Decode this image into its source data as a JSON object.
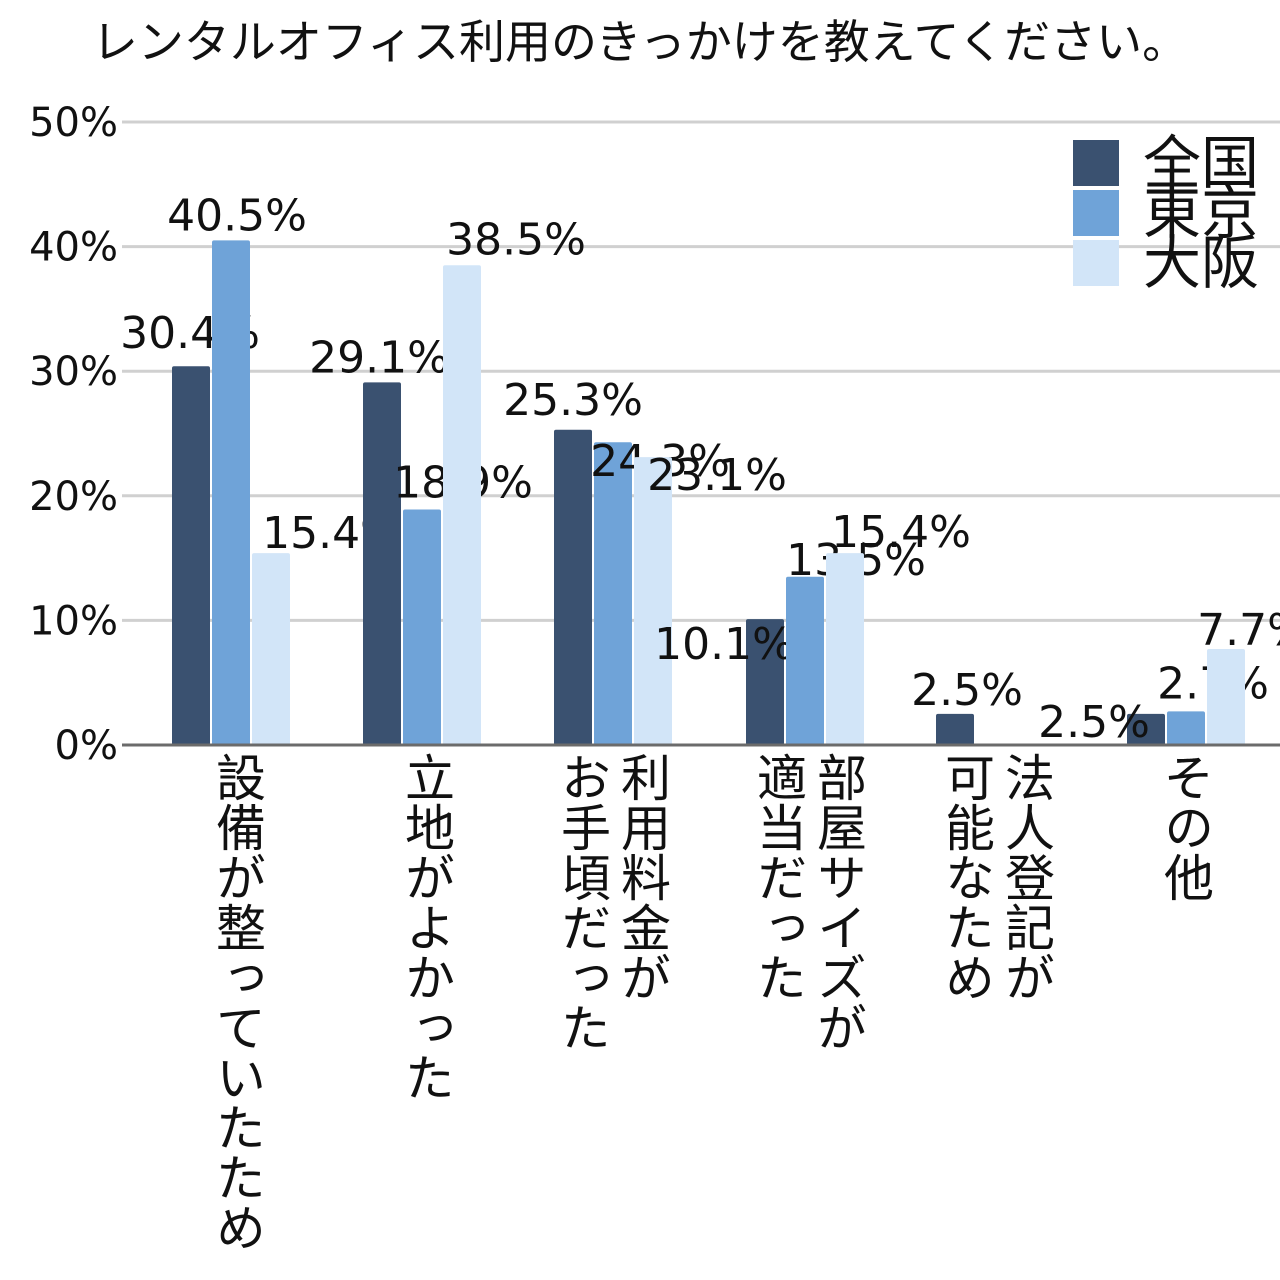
{
  "chart_data": {
    "type": "bar",
    "title": "レンタルオフィス利用のきっかけを教えてください。",
    "xlabel": "",
    "ylabel": "",
    "ylim": [
      0,
      50
    ],
    "yticks": [
      "0%",
      "10%",
      "20%",
      "30%",
      "40%",
      "50%"
    ],
    "grid": true,
    "legend_position": "top-right",
    "categories": [
      "設備が整っていたため",
      "立地がよかった",
      "利用料金が\nお手頃だった",
      "部屋サイズが\n適当だった",
      "法人登記が\n可能なため",
      "その他"
    ],
    "series": [
      {
        "name": "全国",
        "color": "#3a5170",
        "values": [
          30.4,
          29.1,
          25.3,
          10.1,
          2.5,
          2.5
        ],
        "labels": [
          "30.4%",
          "29.1%",
          "25.3%",
          "10.1%",
          "2.5%",
          "2.5%"
        ]
      },
      {
        "name": "東京",
        "color": "#6fa3d8",
        "values": [
          40.5,
          18.9,
          24.3,
          13.5,
          0,
          2.7
        ],
        "labels": [
          "40.5%",
          "18.9%",
          "24.3%",
          "13.5%",
          "",
          "2.7%"
        ]
      },
      {
        "name": "大阪",
        "color": "#d2e5f8",
        "values": [
          15.4,
          38.5,
          23.1,
          15.4,
          0,
          7.7
        ],
        "labels": [
          "15.4%",
          "38.5%",
          "23.1%",
          "15.4%",
          "",
          "7.7%"
        ]
      }
    ]
  }
}
